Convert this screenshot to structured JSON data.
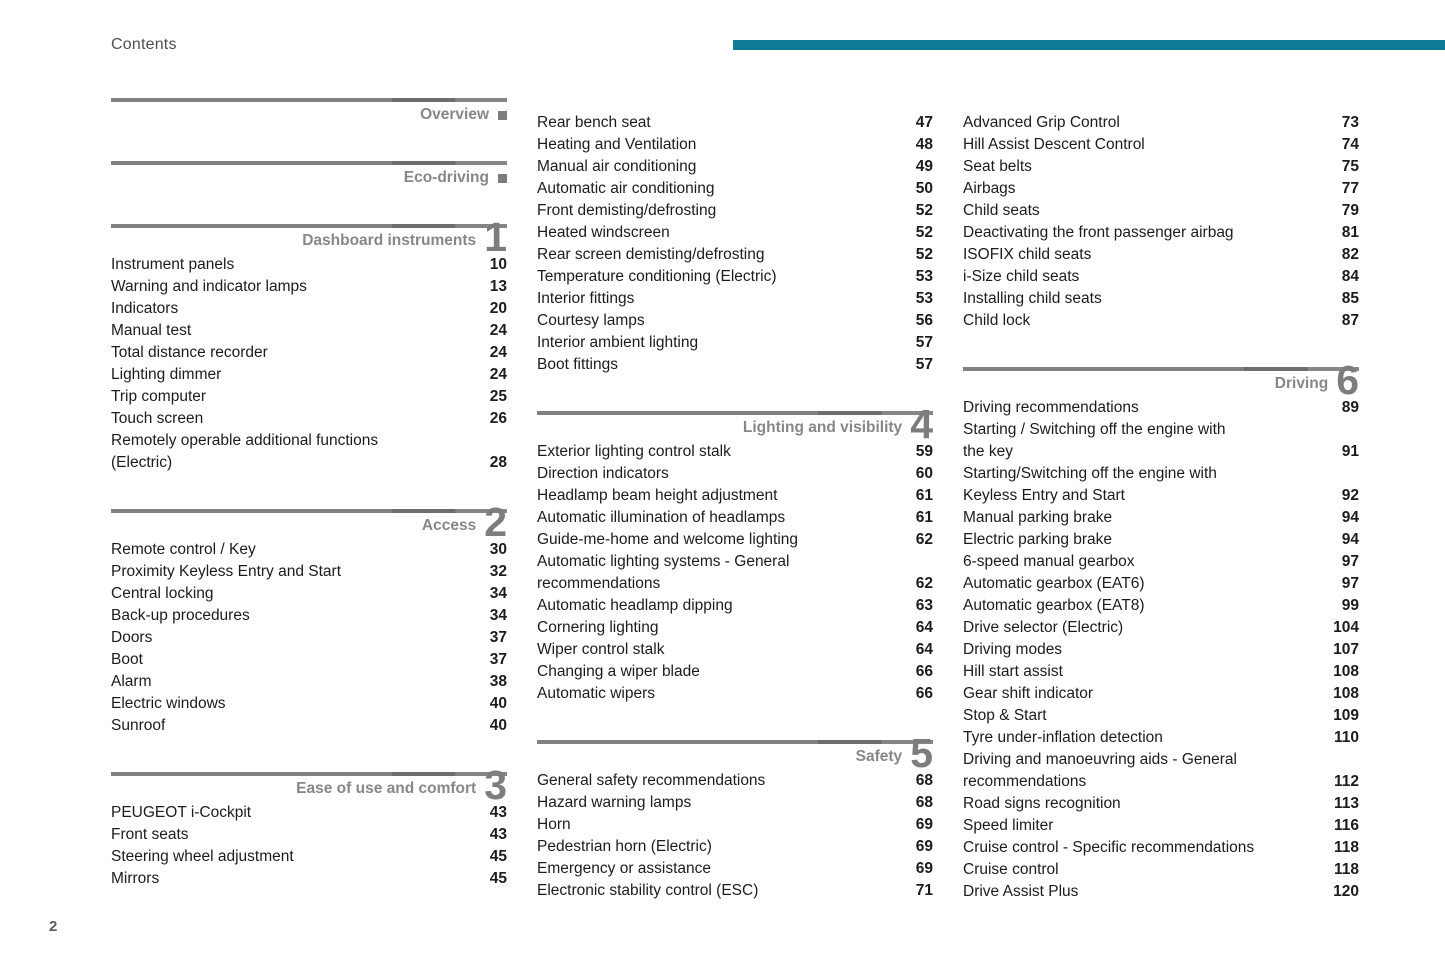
{
  "page": {
    "title": "Contents",
    "page_number": "2"
  },
  "colors": {
    "accent_teal": "#0e7a94",
    "rule_gray": "#7d7d7d",
    "heading_gray": "#878787",
    "text": "#1c1c1c"
  },
  "columns": [
    {
      "blocks": [
        {
          "title": "Overview",
          "marker": "square",
          "entries": []
        },
        {
          "title": "Eco-driving",
          "marker": "square",
          "entries": []
        },
        {
          "title": "Dashboard instruments",
          "number": "1",
          "entries": [
            {
              "label": "Instrument panels",
              "page": "10"
            },
            {
              "label": "Warning and indicator lamps",
              "page": "13"
            },
            {
              "label": "Indicators",
              "page": "20"
            },
            {
              "label": "Manual test",
              "page": "24"
            },
            {
              "label": "Total distance recorder",
              "page": "24"
            },
            {
              "label": "Lighting dimmer",
              "page": "24"
            },
            {
              "label": "Trip computer",
              "page": "25"
            },
            {
              "label": "Touch screen",
              "page": "26"
            },
            {
              "label": "Remotely operable additional functions\n(Electric)",
              "page": "28"
            }
          ]
        },
        {
          "title": "Access",
          "number": "2",
          "entries": [
            {
              "label": "Remote control / Key",
              "page": "30"
            },
            {
              "label": "Proximity Keyless Entry and Start",
              "page": "32"
            },
            {
              "label": "Central locking",
              "page": "34"
            },
            {
              "label": "Back-up procedures",
              "page": "34"
            },
            {
              "label": "Doors",
              "page": "37"
            },
            {
              "label": "Boot",
              "page": "37"
            },
            {
              "label": "Alarm",
              "page": "38"
            },
            {
              "label": "Electric windows",
              "page": "40"
            },
            {
              "label": "Sunroof",
              "page": "40"
            }
          ]
        },
        {
          "title": "Ease of use and comfort",
          "number": "3",
          "entries": [
            {
              "label": "PEUGEOT i-Cockpit",
              "page": "43"
            },
            {
              "label": "Front seats",
              "page": "43"
            },
            {
              "label": "Steering wheel adjustment",
              "page": "45"
            },
            {
              "label": "Mirrors",
              "page": "45"
            }
          ]
        }
      ]
    },
    {
      "blocks": [
        {
          "entries": [
            {
              "label": "Rear bench seat",
              "page": "47"
            },
            {
              "label": "Heating and Ventilation",
              "page": "48"
            },
            {
              "label": "Manual air conditioning",
              "page": "49"
            },
            {
              "label": "Automatic air conditioning",
              "page": "50"
            },
            {
              "label": "Front demisting/defrosting",
              "page": "52"
            },
            {
              "label": "Heated windscreen",
              "page": "52"
            },
            {
              "label": "Rear screen demisting/defrosting",
              "page": "52"
            },
            {
              "label": "Temperature conditioning (Electric)",
              "page": "53"
            },
            {
              "label": "Interior fittings",
              "page": "53"
            },
            {
              "label": "Courtesy lamps",
              "page": "56"
            },
            {
              "label": "Interior ambient lighting",
              "page": "57"
            },
            {
              "label": "Boot fittings",
              "page": "57"
            }
          ]
        },
        {
          "title": "Lighting and visibility",
          "number": "4",
          "entries": [
            {
              "label": "Exterior lighting control stalk",
              "page": "59"
            },
            {
              "label": "Direction indicators",
              "page": "60"
            },
            {
              "label": "Headlamp beam height adjustment",
              "page": "61"
            },
            {
              "label": "Automatic illumination of headlamps",
              "page": "61"
            },
            {
              "label": "Guide-me-home and welcome lighting",
              "page": "62"
            },
            {
              "label": "Automatic lighting systems - General\nrecommendations",
              "page": "62"
            },
            {
              "label": "Automatic headlamp dipping",
              "page": "63"
            },
            {
              "label": "Cornering lighting",
              "page": "64"
            },
            {
              "label": "Wiper control stalk",
              "page": "64"
            },
            {
              "label": "Changing a wiper blade",
              "page": "66"
            },
            {
              "label": "Automatic wipers",
              "page": "66"
            }
          ]
        },
        {
          "title": "Safety",
          "number": "5",
          "entries": [
            {
              "label": "General safety recommendations",
              "page": "68"
            },
            {
              "label": "Hazard warning lamps",
              "page": "68"
            },
            {
              "label": "Horn",
              "page": "69"
            },
            {
              "label": "Pedestrian horn (Electric)",
              "page": "69"
            },
            {
              "label": "Emergency or assistance",
              "page": "69"
            },
            {
              "label": "Electronic stability control (ESC)",
              "page": "71"
            }
          ]
        }
      ]
    },
    {
      "blocks": [
        {
          "entries": [
            {
              "label": "Advanced Grip Control",
              "page": "73"
            },
            {
              "label": "Hill Assist Descent Control",
              "page": "74"
            },
            {
              "label": "Seat belts",
              "page": "75"
            },
            {
              "label": "Airbags",
              "page": "77"
            },
            {
              "label": "Child seats",
              "page": "79"
            },
            {
              "label": "Deactivating the front passenger airbag",
              "page": "81"
            },
            {
              "label": "ISOFIX child seats",
              "page": "82"
            },
            {
              "label": "i-Size child seats",
              "page": "84"
            },
            {
              "label": "Installing child seats",
              "page": "85"
            },
            {
              "label": "Child lock",
              "page": "87"
            }
          ]
        },
        {
          "title": "Driving",
          "number": "6",
          "entries": [
            {
              "label": "Driving recommendations",
              "page": "89"
            },
            {
              "label": "Starting / Switching off the engine with\nthe key",
              "page": "91"
            },
            {
              "label": "Starting/Switching off the engine with\nKeyless Entry and Start",
              "page": "92"
            },
            {
              "label": "Manual parking brake",
              "page": "94"
            },
            {
              "label": "Electric parking brake",
              "page": "94"
            },
            {
              "label": "6-speed manual gearbox",
              "page": "97"
            },
            {
              "label": "Automatic gearbox (EAT6)",
              "page": "97"
            },
            {
              "label": "Automatic gearbox (EAT8)",
              "page": "99"
            },
            {
              "label": "Drive selector (Electric)",
              "page": "104"
            },
            {
              "label": "Driving modes",
              "page": "107"
            },
            {
              "label": "Hill start assist",
              "page": "108"
            },
            {
              "label": "Gear shift indicator",
              "page": "108"
            },
            {
              "label": "Stop & Start",
              "page": "109"
            },
            {
              "label": "Tyre under-inflation detection",
              "page": "110"
            },
            {
              "label": "Driving and manoeuvring aids - General\nrecommendations",
              "page": "112"
            },
            {
              "label": "Road signs recognition",
              "page": "113"
            },
            {
              "label": "Speed limiter",
              "page": "116"
            },
            {
              "label": "Cruise control - Specific recommendations",
              "page": "118"
            },
            {
              "label": "Cruise control",
              "page": "118"
            },
            {
              "label": "Drive Assist Plus",
              "page": "120"
            }
          ]
        }
      ]
    }
  ]
}
